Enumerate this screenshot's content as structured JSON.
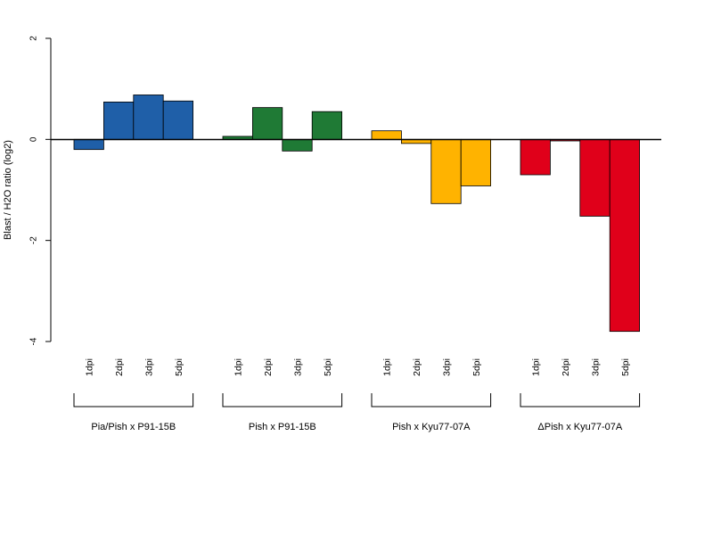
{
  "chart_data": {
    "type": "bar",
    "title": "",
    "xlabel": "",
    "ylabel": "Blast / H2O ratio (log2)",
    "ylim": [
      -4,
      2
    ],
    "yticks": [
      "2",
      "0",
      "-2",
      "-4"
    ],
    "grid": false,
    "categories": [
      "1dpi",
      "2dpi",
      "3dpi",
      "5dpi"
    ],
    "groups": [
      {
        "name": "Pia/Pish x P91-15B",
        "color": "#1f5fa8",
        "values": [
          -0.2,
          0.74,
          0.88,
          0.76
        ]
      },
      {
        "name": "Pish x P91-15B",
        "color": "#1f7a35",
        "values": [
          0.06,
          0.63,
          -0.23,
          0.55
        ]
      },
      {
        "name": "Pish x Kyu77-07A",
        "color": "#ffb300",
        "values": [
          0.17,
          -0.08,
          -1.27,
          -0.92
        ]
      },
      {
        "name": "ΔPish x Kyu77-07A",
        "color": "#e0001a",
        "values": [
          -0.7,
          -0.03,
          -1.52,
          -3.8
        ]
      }
    ]
  }
}
